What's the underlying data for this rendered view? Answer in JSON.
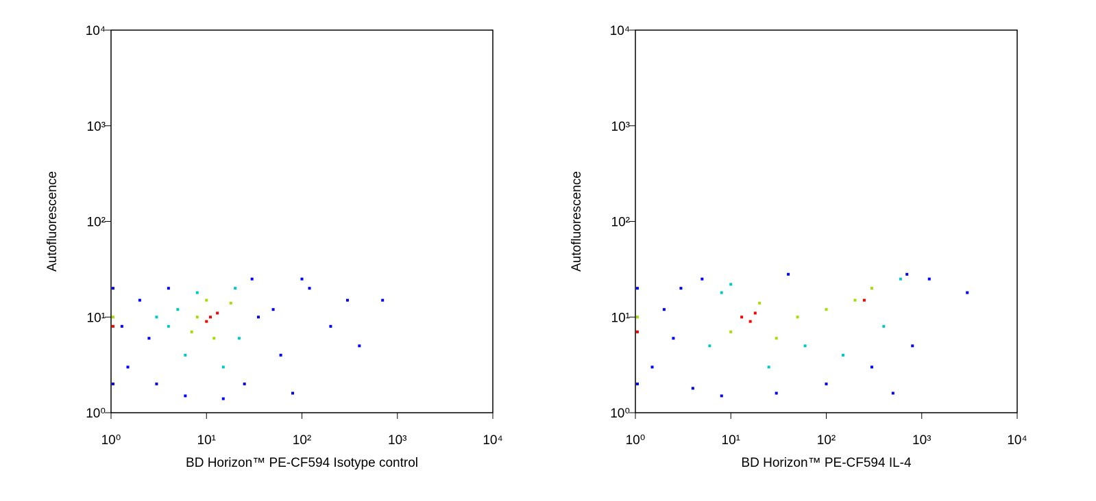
{
  "chart_data": [
    {
      "type": "scatter",
      "xlabel": "BD Horizon™ PE-CF594 Isotype control",
      "ylabel": "Autofluorescence",
      "log_x": true,
      "log_y": true,
      "xlim": [
        1,
        10000
      ],
      "ylim": [
        1,
        10000
      ],
      "xticks": [
        {
          "value": 1,
          "label": "10⁰"
        },
        {
          "value": 10,
          "label": "10¹"
        },
        {
          "value": 100,
          "label": "10²"
        },
        {
          "value": 1000,
          "label": "10³"
        },
        {
          "value": 10000,
          "label": "10⁴"
        }
      ],
      "yticks": [
        {
          "value": 1,
          "label": "10⁰"
        },
        {
          "value": 10,
          "label": "10¹"
        },
        {
          "value": 100,
          "label": "10²"
        },
        {
          "value": 1000,
          "label": "10³"
        },
        {
          "value": 10000,
          "label": "10⁴"
        }
      ],
      "series": [
        {
          "color": "#0000ff",
          "x": [
            1.5,
            2,
            3,
            4,
            6,
            25,
            30,
            1.3,
            2.5,
            15,
            35,
            50,
            80,
            120,
            200,
            300,
            400,
            700,
            100,
            60,
            1.05,
            1.05
          ],
          "y": [
            3,
            15,
            2,
            20,
            1.5,
            2,
            25,
            8,
            6,
            1.4,
            10,
            12,
            1.6,
            20,
            8,
            15,
            5,
            15,
            25,
            4,
            2,
            20
          ]
        },
        {
          "color": "#00c8c8",
          "x": [
            4,
            6,
            8,
            20,
            5,
            15,
            22,
            3
          ],
          "y": [
            8,
            4,
            18,
            20,
            12,
            3,
            6,
            10
          ]
        },
        {
          "color": "#a0e000",
          "x": [
            8,
            12,
            7,
            18,
            10,
            1.05
          ],
          "y": [
            10,
            6,
            7,
            14,
            15,
            10
          ]
        },
        {
          "color": "#ff0000",
          "x": [
            11,
            13,
            10,
            1.05
          ],
          "y": [
            10,
            11,
            9,
            8
          ]
        }
      ]
    },
    {
      "type": "scatter",
      "xlabel": "BD Horizon™ PE-CF594 IL-4",
      "ylabel": "Autofluorescence",
      "log_x": true,
      "log_y": true,
      "xlim": [
        1,
        10000
      ],
      "ylim": [
        1,
        10000
      ],
      "xticks": [
        {
          "value": 1,
          "label": "10⁰"
        },
        {
          "value": 10,
          "label": "10¹"
        },
        {
          "value": 100,
          "label": "10²"
        },
        {
          "value": 1000,
          "label": "10³"
        },
        {
          "value": 10000,
          "label": "10⁴"
        }
      ],
      "yticks": [
        {
          "value": 1,
          "label": "10⁰"
        },
        {
          "value": 10,
          "label": "10¹"
        },
        {
          "value": 100,
          "label": "10²"
        },
        {
          "value": 1000,
          "label": "10³"
        },
        {
          "value": 10000,
          "label": "10⁴"
        }
      ],
      "series": [
        {
          "color": "#0000ff",
          "x": [
            1.5,
            2,
            3,
            4,
            5,
            8,
            30,
            100,
            300,
            500,
            800,
            1200,
            3000,
            1.05,
            1.05,
            700,
            40,
            2.5
          ],
          "y": [
            3,
            12,
            20,
            1.8,
            25,
            1.5,
            1.6,
            2,
            3,
            1.6,
            5,
            25,
            18,
            2,
            20,
            28,
            28,
            6
          ]
        },
        {
          "color": "#00c8c8",
          "x": [
            6,
            8,
            25,
            60,
            150,
            400,
            600,
            10
          ],
          "y": [
            5,
            18,
            3,
            5,
            4,
            8,
            25,
            22
          ]
        },
        {
          "color": "#a0e000",
          "x": [
            10,
            20,
            50,
            100,
            200,
            300,
            30,
            1.05
          ],
          "y": [
            7,
            14,
            10,
            12,
            15,
            20,
            6,
            10
          ]
        },
        {
          "color": "#ff0000",
          "x": [
            13,
            16,
            18,
            250,
            1.05
          ],
          "y": [
            10,
            9,
            11,
            15,
            7
          ]
        }
      ]
    }
  ]
}
